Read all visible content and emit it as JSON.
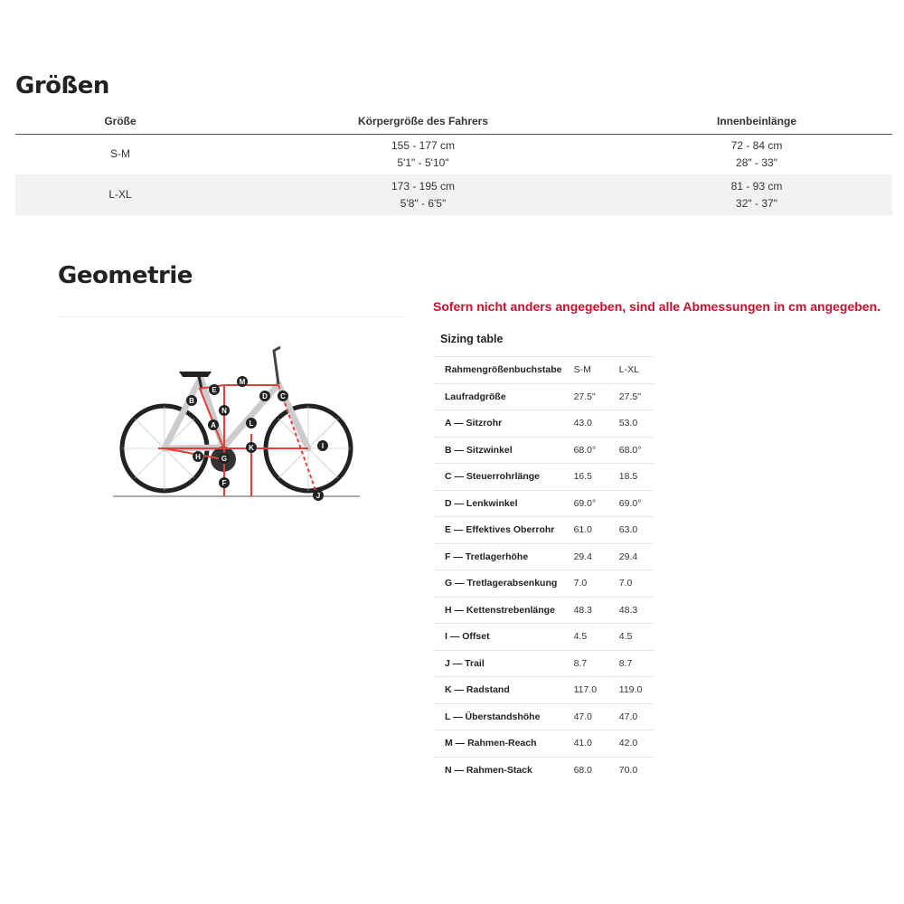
{
  "sizes": {
    "title": "Größen",
    "headers": [
      "Größe",
      "Körpergröße des Fahrers",
      "Innenbeinlänge"
    ],
    "rows": [
      {
        "size": "S-M",
        "height_cm": "155 - 177 cm",
        "height_in": "5'1\" - 5'10\"",
        "inseam_cm": "72 - 84 cm",
        "inseam_in": "28\" - 33\""
      },
      {
        "size": "L-XL",
        "height_cm": "173 - 195 cm",
        "height_in": "5'8\" - 6'5\"",
        "inseam_cm": "81 - 93 cm",
        "inseam_in": "32\" - 37\""
      }
    ]
  },
  "geometry": {
    "title": "Geometrie",
    "note": "Sofern nicht anders angegeben, sind alle Abmessungen in cm angegeben.",
    "table_title": "Sizing table",
    "diagram_letters": [
      "A",
      "B",
      "C",
      "D",
      "E",
      "F",
      "G",
      "H",
      "I",
      "J",
      "K",
      "L",
      "M",
      "N"
    ],
    "rows": [
      [
        "Rahmengrößenbuchstabe",
        "S-M",
        "L-XL"
      ],
      [
        "Laufradgröße",
        "27.5\"",
        "27.5\""
      ],
      [
        "A — Sitzrohr",
        "43.0",
        "53.0"
      ],
      [
        "B — Sitzwinkel",
        "68.0°",
        "68.0°"
      ],
      [
        "C — Steuerrohrlänge",
        "16.5",
        "18.5"
      ],
      [
        "D — Lenkwinkel",
        "69.0°",
        "69.0°"
      ],
      [
        "E — Effektives Oberrohr",
        "61.0",
        "63.0"
      ],
      [
        "F — Tretlagerhöhe",
        "29.4",
        "29.4"
      ],
      [
        "G — Tretlagerabsenkung",
        "7.0",
        "7.0"
      ],
      [
        "H — Kettenstrebenlänge",
        "48.3",
        "48.3"
      ],
      [
        "I — Offset",
        "4.5",
        "4.5"
      ],
      [
        "J — Trail",
        "8.7",
        "8.7"
      ],
      [
        "K — Radstand",
        "117.0",
        "119.0"
      ],
      [
        "L — Überstandshöhe",
        "47.0",
        "47.0"
      ],
      [
        "M — Rahmen-Reach",
        "41.0",
        "42.0"
      ],
      [
        "N — Rahmen-Stack",
        "68.0",
        "70.0"
      ]
    ]
  },
  "colors": {
    "accent": "#c8102e",
    "measure": "#e0413a"
  }
}
